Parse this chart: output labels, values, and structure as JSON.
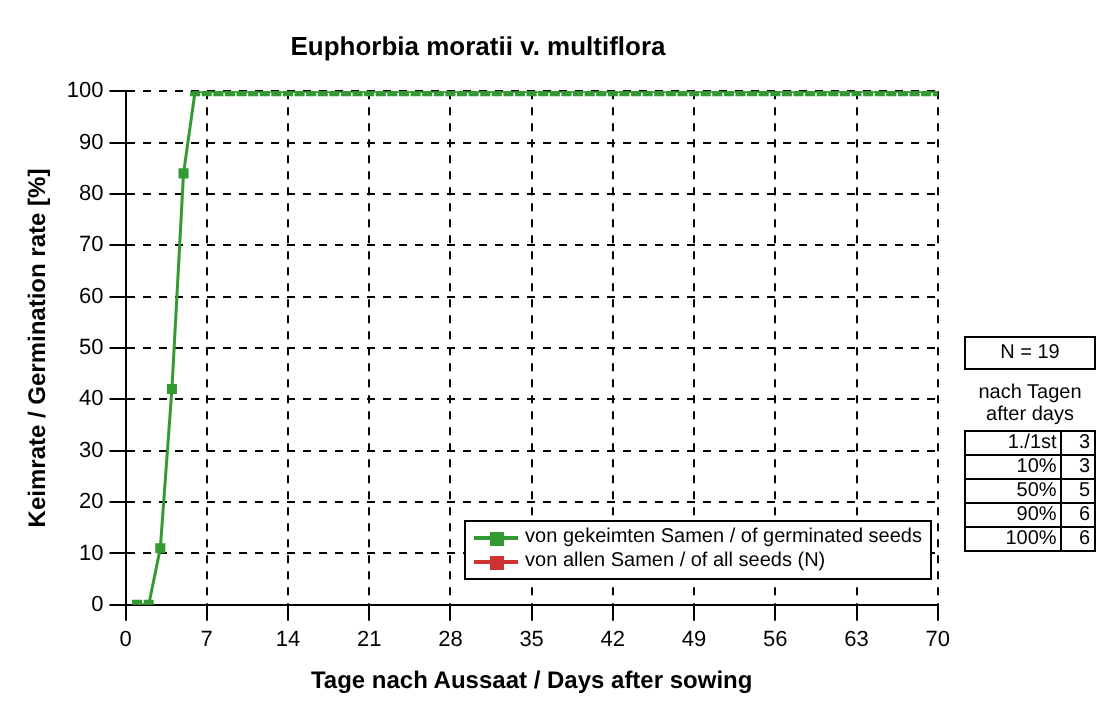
{
  "chart_data": {
    "type": "line",
    "title": "Euphorbia moratii v. multiflora",
    "xlabel": "Tage nach Aussaat / Days after sowing",
    "ylabel": "Keimrate / Germination rate [%]",
    "x": [
      1,
      2,
      3,
      4,
      5,
      6,
      7,
      8,
      9,
      10,
      11,
      12,
      13,
      14,
      15,
      16,
      17,
      18,
      19,
      20,
      21,
      22,
      23,
      24,
      25,
      26,
      27,
      28,
      29,
      30,
      31,
      32,
      33,
      34,
      35,
      36,
      37,
      38,
      39,
      40,
      41,
      42,
      43,
      44,
      45,
      46,
      47,
      48,
      49,
      50,
      51,
      52,
      53,
      54,
      55,
      56,
      57,
      58,
      59,
      60,
      61,
      62,
      63,
      64,
      65,
      66,
      67,
      68,
      69,
      70
    ],
    "series": [
      {
        "name": "von allen Samen / of all seeds (N)",
        "color": "#cc3333",
        "values": [
          null,
          null,
          null,
          null,
          null,
          null,
          null,
          null,
          null,
          null,
          null,
          null,
          null,
          null,
          null,
          null,
          null,
          null,
          null,
          null,
          null,
          null,
          null,
          null,
          null,
          null,
          null,
          null,
          null,
          null,
          null,
          null,
          null,
          null,
          null,
          null,
          null,
          null,
          null,
          null,
          null,
          null,
          null,
          null,
          null,
          null,
          null,
          null,
          null,
          null,
          null,
          null,
          null,
          null,
          null,
          null,
          null,
          null,
          null,
          null,
          null,
          null,
          null,
          null,
          null,
          null,
          null,
          null,
          null,
          null
        ]
      },
      {
        "name": "von gekeimten Samen / of germinated seeds",
        "color": "#339933",
        "values": [
          0,
          0,
          11,
          42,
          84,
          100,
          100,
          100,
          100,
          100,
          100,
          100,
          100,
          100,
          100,
          100,
          100,
          100,
          100,
          100,
          100,
          100,
          100,
          100,
          100,
          100,
          100,
          100,
          100,
          100,
          100,
          100,
          100,
          100,
          100,
          100,
          100,
          100,
          100,
          100,
          100,
          100,
          100,
          100,
          100,
          100,
          100,
          100,
          100,
          100,
          100,
          100,
          100,
          100,
          100,
          100,
          100,
          100,
          100,
          100,
          100,
          100,
          100,
          100,
          100,
          100,
          100,
          100,
          100,
          100
        ]
      }
    ],
    "xlim": [
      0,
      70
    ],
    "xticks": [
      0,
      7,
      14,
      21,
      28,
      35,
      42,
      49,
      56,
      63,
      70
    ],
    "ylim": [
      0,
      100
    ],
    "yticks": [
      0,
      10,
      20,
      30,
      40,
      50,
      60,
      70,
      80,
      90,
      100
    ],
    "grid": true,
    "legend": "bottom right",
    "marker": "square",
    "line_style": "solid",
    "annotations": [
      "N = 19",
      "nach Tagen",
      "after days",
      "1./1st",
      "3",
      "10%",
      "3",
      "50%",
      "5",
      "90%",
      "6",
      "100%",
      "6"
    ]
  }
}
